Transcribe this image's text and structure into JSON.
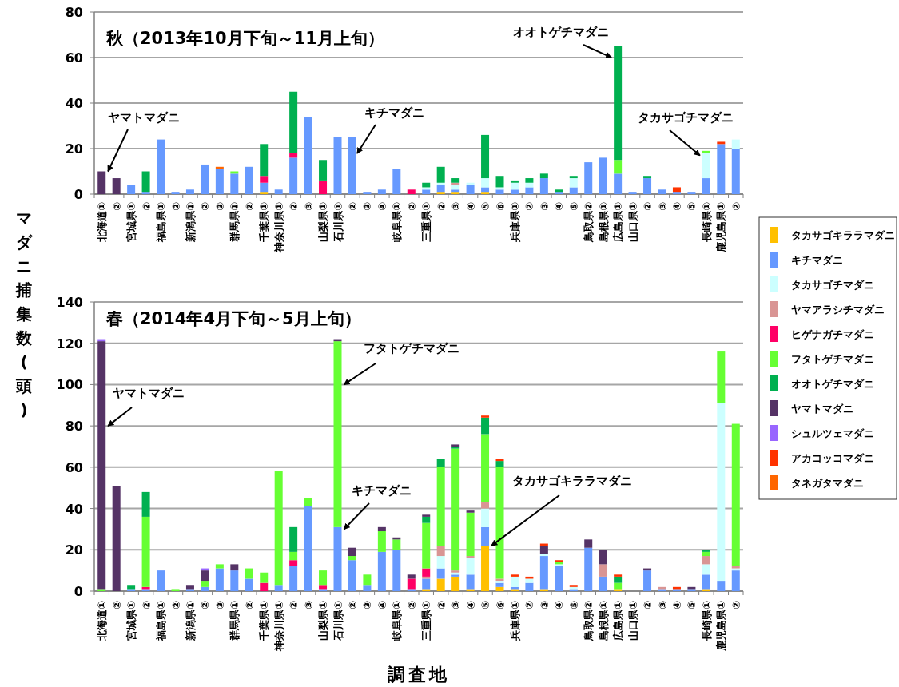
{
  "chart_data": [
    {
      "type": "bar",
      "stacked": true,
      "title": "秋（2013年10月下旬～11月上旬）",
      "ylabel": "マダニ捕集数(頭)",
      "grid": "y",
      "legend": "right",
      "ylim": [
        0,
        80
      ],
      "yticks": [
        0,
        20,
        40,
        60,
        80
      ],
      "categories": [
        "北海道①",
        "②",
        "宮城県①",
        "②",
        "福島県①",
        "②",
        "新潟県①",
        "②",
        "③",
        "群馬県①",
        "②",
        "千葉県①",
        "神奈川県①",
        "②",
        "③",
        "山梨県①",
        "石川県①",
        "②",
        "③",
        "④",
        "岐阜県①",
        "②",
        "三重県①",
        "②",
        "③",
        "④",
        "⑤",
        "⑥",
        "兵庫県①",
        "②",
        "③",
        "④",
        "⑤",
        "鳥取県②",
        "島根県①",
        "広島県①",
        "山口県①",
        "②",
        "③",
        "④",
        "⑤",
        "長崎県①",
        "鹿児島県①",
        "②"
      ],
      "annotations": [
        {
          "text": "ヤマトマダニ",
          "x": "北海道①",
          "y": 10
        },
        "キチマダニ",
        {
          "text": "オオトゲチマダニ",
          "x": "広島県①",
          "y": 60
        },
        {
          "text": "タカサゴチマダニ",
          "x": "長崎県①",
          "y": 17
        }
      ],
      "series": [
        {
          "name": "タカサゴキララマダニ",
          "color": "#ffc000",
          "values": [
            0,
            0,
            0,
            0,
            0,
            0,
            0,
            0,
            0,
            0,
            0,
            1,
            0,
            0,
            0,
            0,
            0,
            0,
            0,
            0,
            0,
            0,
            0,
            1,
            1,
            0,
            1,
            0,
            0,
            0,
            0,
            0,
            0,
            0,
            0,
            0,
            0,
            0,
            0,
            0,
            0,
            0,
            0,
            0
          ]
        },
        {
          "name": "キチマダニ",
          "color": "#6699ff",
          "values": [
            0,
            0,
            4,
            1,
            24,
            1,
            2,
            13,
            11,
            9,
            12,
            4,
            2,
            16,
            34,
            0,
            25,
            25,
            1,
            2,
            11,
            0,
            2,
            3,
            1,
            4,
            2,
            2,
            2,
            3,
            7,
            1,
            3,
            14,
            16,
            9,
            1,
            7,
            2,
            1,
            1,
            7,
            22,
            20
          ]
        },
        {
          "name": "タカサゴチマダニ",
          "color": "#ccffff",
          "values": [
            0,
            0,
            0,
            0,
            0,
            0,
            0,
            0,
            0,
            0,
            0,
            0,
            0,
            0,
            0,
            0,
            0,
            0,
            0,
            0,
            0,
            0,
            1,
            1,
            2,
            1,
            4,
            1,
            3,
            2,
            0,
            0,
            4,
            0,
            0,
            0,
            0,
            0,
            0,
            0,
            0,
            11,
            0,
            4
          ]
        },
        {
          "name": "ヤマアラシチマダニ",
          "color": "#d99594",
          "values": [
            0,
            0,
            0,
            0,
            0,
            0,
            0,
            0,
            0,
            0,
            0,
            0,
            0,
            0,
            0,
            0,
            0,
            0,
            0,
            0,
            0,
            0,
            0,
            0,
            1,
            0,
            0,
            0,
            0,
            0,
            0,
            0,
            0,
            0,
            0,
            0,
            0,
            0,
            0,
            0,
            0,
            0,
            0,
            0
          ]
        },
        {
          "name": "ヒゲナガチマダニ",
          "color": "#ff0066",
          "values": [
            0,
            0,
            0,
            0,
            0,
            0,
            0,
            0,
            0,
            0,
            0,
            3,
            0,
            2,
            0,
            6,
            0,
            0,
            0,
            0,
            0,
            2,
            0,
            0,
            0,
            0,
            0,
            0,
            0,
            0,
            0,
            0,
            0,
            0,
            0,
            0,
            0,
            0,
            0,
            0,
            0,
            0,
            0,
            0
          ]
        },
        {
          "name": "フタトゲチマダニ",
          "color": "#66ff33",
          "values": [
            0,
            0,
            0,
            0,
            0,
            0,
            0,
            0,
            0,
            1,
            0,
            0,
            0,
            0,
            0,
            0,
            0,
            0,
            0,
            0,
            0,
            0,
            0,
            0,
            0,
            0,
            0,
            0,
            0,
            0,
            0,
            0,
            0,
            0,
            0,
            6,
            0,
            0,
            0,
            0,
            0,
            1,
            0,
            0
          ]
        },
        {
          "name": "オオトゲチマダニ",
          "color": "#00b050",
          "values": [
            0,
            0,
            0,
            9,
            0,
            0,
            0,
            0,
            0,
            0,
            0,
            14,
            0,
            27,
            0,
            9,
            0,
            0,
            0,
            0,
            0,
            0,
            2,
            7,
            2,
            0,
            19,
            5,
            1,
            2,
            2,
            1,
            1,
            0,
            0,
            50,
            0,
            1,
            0,
            0,
            0,
            0,
            0,
            0
          ]
        },
        {
          "name": "ヤマトマダニ",
          "color": "#553366",
          "values": [
            10,
            7,
            0,
            0,
            0,
            0,
            0,
            0,
            0,
            0,
            0,
            0,
            0,
            0,
            0,
            0,
            0,
            0,
            0,
            0,
            0,
            0,
            0,
            0,
            0,
            0,
            0,
            0,
            0,
            0,
            0,
            0,
            0,
            0,
            0,
            0,
            0,
            0,
            0,
            0,
            0,
            0,
            0,
            0
          ]
        },
        {
          "name": "シュルツェマダニ",
          "color": "#9966ff",
          "values": [
            0,
            0,
            0,
            0,
            0,
            0,
            0,
            0,
            0,
            0,
            0,
            0,
            0,
            0,
            0,
            0,
            0,
            0,
            0,
            0,
            0,
            0,
            0,
            0,
            0,
            0,
            0,
            0,
            0,
            0,
            0,
            0,
            0,
            0,
            0,
            0,
            0,
            0,
            0,
            0,
            0,
            0,
            0,
            0
          ]
        },
        {
          "name": "アカコッコマダニ",
          "color": "#ff3300",
          "values": [
            0,
            0,
            0,
            0,
            0,
            0,
            0,
            0,
            0,
            0,
            0,
            0,
            0,
            0,
            0,
            0,
            0,
            0,
            0,
            0,
            0,
            0,
            0,
            0,
            0,
            0,
            0,
            0,
            0,
            0,
            0,
            0,
            0,
            0,
            0,
            0,
            0,
            0,
            0,
            2,
            0,
            0,
            1,
            0
          ]
        },
        {
          "name": "タネガタマダニ",
          "color": "#ff6600",
          "values": [
            0,
            0,
            0,
            0,
            0,
            0,
            0,
            0,
            1,
            0,
            0,
            0,
            0,
            0,
            0,
            0,
            0,
            0,
            0,
            0,
            0,
            0,
            0,
            0,
            0,
            0,
            0,
            0,
            0,
            0,
            0,
            0,
            0,
            0,
            0,
            0,
            0,
            0,
            0,
            0,
            0,
            0,
            0,
            0
          ]
        }
      ]
    },
    {
      "type": "bar",
      "stacked": true,
      "title": "春（2014年4月下旬～5月上旬）",
      "xlabel": "調査地",
      "grid": "y",
      "ylim": [
        0,
        140
      ],
      "yticks": [
        0,
        20,
        40,
        60,
        80,
        100,
        120,
        140
      ],
      "categories": [
        "北海道①",
        "②",
        "宮城県①",
        "②",
        "福島県①",
        "②",
        "新潟県①",
        "②",
        "③",
        "群馬県①",
        "②",
        "千葉県①",
        "神奈川県①",
        "②",
        "③",
        "山梨県①",
        "石川県①",
        "②",
        "③",
        "④",
        "岐阜県①",
        "②",
        "三重県①",
        "②",
        "③",
        "④",
        "⑤",
        "⑥",
        "兵庫県①",
        "②",
        "③",
        "④",
        "⑤",
        "鳥取県②",
        "島根県①",
        "広島県①",
        "山口県①",
        "②",
        "③",
        "④",
        "⑤",
        "長崎県①",
        "鹿児島県①",
        "②"
      ],
      "annotations": [
        {
          "text": "ヤマトマダニ",
          "x": "北海道①",
          "y": 80
        },
        {
          "text": "フタトゲチマダニ",
          "x": "石川県①",
          "y": 100
        },
        {
          "text": "キチマダニ",
          "x": "石川県①",
          "y": 30
        },
        {
          "text": "タカサゴキララマダニ",
          "x": "⑤",
          "y": 22
        }
      ],
      "series": [
        {
          "color": "#ffc000",
          "values": [
            0,
            0,
            0,
            0,
            0,
            0,
            0,
            0,
            0,
            0,
            0,
            0,
            0,
            0,
            0,
            0,
            0,
            0,
            0,
            0,
            0,
            0,
            1,
            6,
            7,
            1,
            22,
            2,
            1,
            0,
            1,
            0,
            0,
            0,
            0,
            1,
            0,
            0,
            0,
            0,
            0,
            1,
            0,
            0
          ]
        },
        {
          "color": "#6699ff",
          "values": [
            0,
            0,
            1,
            1,
            10,
            0,
            1,
            2,
            11,
            10,
            6,
            0,
            3,
            12,
            41,
            1,
            31,
            15,
            3,
            19,
            20,
            1,
            5,
            5,
            1,
            7,
            9,
            2,
            1,
            4,
            16,
            12,
            1,
            21,
            7,
            0,
            0,
            10,
            1,
            1,
            1,
            7,
            5,
            10
          ]
        },
        {
          "color": "#ccffff",
          "values": [
            0,
            0,
            0,
            0,
            0,
            0,
            0,
            0,
            0,
            0,
            0,
            0,
            0,
            0,
            0,
            0,
            0,
            0,
            0,
            0,
            0,
            0,
            0,
            6,
            1,
            8,
            9,
            1,
            5,
            2,
            1,
            1,
            1,
            0,
            0,
            0,
            0,
            0,
            0,
            0,
            0,
            5,
            86,
            1
          ]
        },
        {
          "color": "#d99594",
          "values": [
            0,
            0,
            0,
            0,
            0,
            0,
            0,
            0,
            0,
            0,
            0,
            0,
            0,
            0,
            0,
            0,
            0,
            0,
            0,
            0,
            0,
            0,
            1,
            5,
            1,
            1,
            3,
            1,
            0,
            0,
            0,
            0,
            0,
            0,
            6,
            0,
            0,
            0,
            1,
            0,
            0,
            4,
            0,
            1
          ]
        },
        {
          "color": "#ff0066",
          "values": [
            0,
            0,
            0,
            1,
            0,
            0,
            0,
            0,
            0,
            0,
            0,
            4,
            0,
            3,
            0,
            2,
            0,
            0,
            0,
            0,
            0,
            5,
            4,
            0,
            0,
            0,
            0,
            0,
            0,
            0,
            0,
            0,
            0,
            0,
            0,
            0,
            0,
            0,
            0,
            0,
            0,
            0,
            0,
            0
          ]
        },
        {
          "color": "#66ff33",
          "values": [
            1,
            0,
            0,
            34,
            0,
            1,
            0,
            3,
            2,
            0,
            5,
            5,
            55,
            4,
            4,
            7,
            90,
            2,
            5,
            10,
            5,
            0,
            22,
            38,
            59,
            21,
            33,
            54,
            0,
            0,
            0,
            1,
            0,
            0,
            0,
            3,
            0,
            0,
            0,
            0,
            0,
            2,
            25,
            69
          ]
        },
        {
          "color": "#00b050",
          "values": [
            0,
            0,
            2,
            12,
            0,
            0,
            0,
            0,
            0,
            0,
            0,
            0,
            0,
            12,
            0,
            0,
            0,
            0,
            0,
            0,
            0,
            0,
            3,
            4,
            1,
            0,
            8,
            3,
            0,
            0,
            0,
            0,
            0,
            0,
            0,
            3,
            0,
            0,
            0,
            0,
            0,
            1,
            0,
            0
          ]
        },
        {
          "color": "#553366",
          "values": [
            120,
            51,
            0,
            0,
            0,
            0,
            2,
            5,
            0,
            3,
            0,
            0,
            0,
            0,
            0,
            0,
            1,
            4,
            0,
            2,
            1,
            2,
            1,
            0,
            1,
            1,
            0,
            0,
            0,
            0,
            4,
            0,
            0,
            4,
            7,
            0,
            0,
            1,
            0,
            0,
            1,
            0,
            0,
            0
          ]
        },
        {
          "color": "#9966ff",
          "values": [
            1,
            0,
            0,
            0,
            0,
            0,
            0,
            1,
            0,
            0,
            0,
            0,
            0,
            0,
            0,
            0,
            0,
            0,
            0,
            0,
            0,
            0,
            0,
            0,
            0,
            0,
            0,
            0,
            0,
            0,
            0,
            0,
            0,
            0,
            0,
            0,
            0,
            0,
            0,
            0,
            0,
            0,
            0,
            0
          ]
        },
        {
          "color": "#ff3300",
          "values": [
            0,
            0,
            0,
            0,
            0,
            0,
            0,
            0,
            0,
            0,
            0,
            0,
            0,
            0,
            0,
            0,
            0,
            0,
            0,
            0,
            0,
            0,
            0,
            0,
            0,
            0,
            1,
            1,
            1,
            1,
            1,
            1,
            1,
            0,
            0,
            1,
            0,
            0,
            0,
            1,
            0,
            0,
            0,
            0
          ]
        }
      ]
    }
  ]
}
